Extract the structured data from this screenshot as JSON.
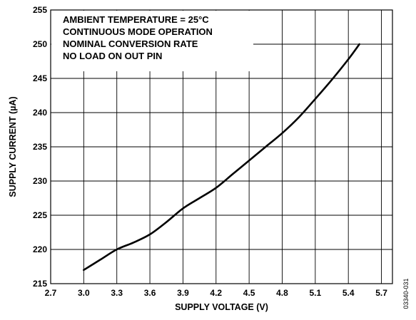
{
  "chart_data": {
    "type": "line",
    "title": "",
    "xlabel": "SUPPLY VOLTAGE (V)",
    "ylabel": "SUPPLY CURRENT (µA)",
    "xlim": [
      2.7,
      5.8
    ],
    "ylim": [
      215,
      255
    ],
    "xticks": [
      "2.7",
      "3.0",
      "3.3",
      "3.6",
      "3.9",
      "4.2",
      "4.5",
      "4.8",
      "5.1",
      "5.4",
      "5.7"
    ],
    "yticks": [
      "215",
      "220",
      "225",
      "230",
      "235",
      "240",
      "245",
      "250",
      "255"
    ],
    "grid": true,
    "annotations": [
      "AMBIENT TEMPERATURE = 25°C",
      "CONTINUOUS MODE OPERATION",
      "NOMINAL CONVERSION RATE",
      "NO LOAD ON OUT PIN"
    ],
    "figure_id": "03340-031",
    "series": [
      {
        "x": [
          3.0,
          3.15,
          3.3,
          3.45,
          3.6,
          3.75,
          3.9,
          4.05,
          4.2,
          4.35,
          4.5,
          4.65,
          4.8,
          4.95,
          5.1,
          5.25,
          5.4,
          5.5
        ],
        "y": [
          217.0,
          218.5,
          220.0,
          221.0,
          222.2,
          224.0,
          226.0,
          227.5,
          229.0,
          231.0,
          233.0,
          235.0,
          237.0,
          239.3,
          242.0,
          244.8,
          247.8,
          250.0
        ]
      }
    ]
  }
}
